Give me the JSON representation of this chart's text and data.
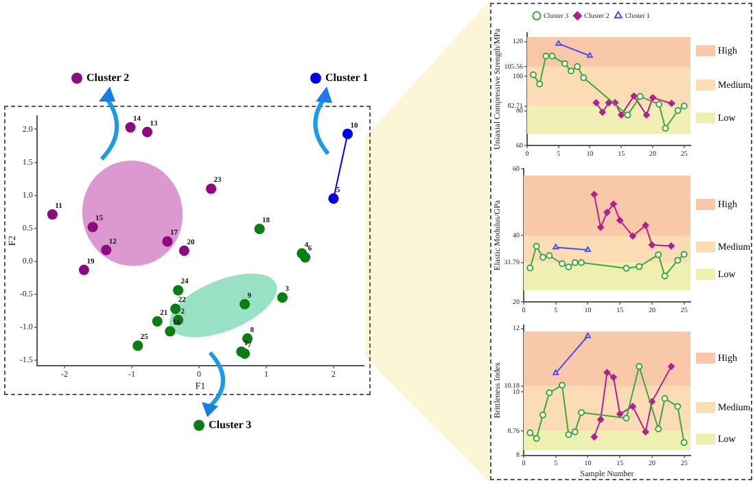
{
  "chart_data": [
    {
      "type": "scatter",
      "legend": "bottom right",
      "xlabel": "F1",
      "ylabel": "F2",
      "xlim": [
        -2.41,
        2.45
      ],
      "ylim": [
        -1.58,
        2.2
      ],
      "xticks": [
        -2,
        -1,
        0,
        1,
        2
      ],
      "yticks": [
        -1.5,
        {
          "value": -1,
          "label": "-1.0"
        },
        -0.5,
        {
          "value": 0,
          "label": "0.0"
        },
        0.5,
        {
          "value": 1,
          "label": "1.0"
        },
        1.5,
        {
          "value": 2,
          "label": "2.0"
        }
      ],
      "series": [
        {
          "name": "Cluster 1",
          "color": "#0000ee",
          "type": "line",
          "marker": "circle",
          "x": [
            2.0,
            2.21
          ],
          "values": [
            0.95,
            1.93
          ]
        },
        {
          "name": "Cluster 2",
          "color": "#8e0a80",
          "marker": "circle",
          "x": [
            -1.02,
            -0.77,
            0.18,
            -2.18,
            -1.58,
            -1.38,
            -0.47,
            -0.22,
            -1.71
          ],
          "values": [
            2.03,
            1.96,
            1.1,
            0.71,
            0.52,
            0.17,
            0.3,
            0.16,
            -0.13
          ]
        },
        {
          "name": "Cluster 3",
          "color": "#0b7d14",
          "marker": "circle",
          "x": [
            0.9,
            1.53,
            1.58,
            1.24,
            0.68,
            -0.31,
            -0.35,
            -0.31,
            -0.62,
            -0.43,
            -0.91,
            0.72,
            0.63,
            0.68
          ],
          "values": [
            0.49,
            0.12,
            0.06,
            -0.55,
            -0.65,
            -0.44,
            -0.72,
            -0.89,
            -0.91,
            -1.06,
            -1.28,
            -1.17,
            -1.37,
            -1.4
          ]
        }
      ],
      "annotations": [
        {
          "text": "5",
          "x": 2.0,
          "y": 0.95
        },
        {
          "text": "10",
          "x": 2.21,
          "y": 1.93
        },
        {
          "text": "14",
          "x": -1.02,
          "y": 2.03
        },
        {
          "text": "13",
          "x": -0.77,
          "y": 1.96
        },
        {
          "text": "23",
          "x": 0.18,
          "y": 1.1
        },
        {
          "text": "11",
          "x": -2.18,
          "y": 0.71
        },
        {
          "text": "15",
          "x": -1.58,
          "y": 0.52
        },
        {
          "text": "12",
          "x": -1.38,
          "y": 0.17
        },
        {
          "text": "17",
          "x": -0.47,
          "y": 0.3
        },
        {
          "text": "20",
          "x": -0.22,
          "y": 0.16
        },
        {
          "text": "19",
          "x": -1.71,
          "y": -0.13
        },
        {
          "text": "18",
          "x": 0.9,
          "y": 0.49
        },
        {
          "text": "4",
          "x": 1.53,
          "y": 0.12
        },
        {
          "text": "6",
          "x": 1.58,
          "y": 0.06
        },
        {
          "text": "3",
          "x": 1.24,
          "y": -0.55
        },
        {
          "text": "9",
          "x": 0.68,
          "y": -0.65
        },
        {
          "text": "24",
          "x": -0.31,
          "y": -0.44
        },
        {
          "text": "22",
          "x": -0.35,
          "y": -0.72
        },
        {
          "text": "2",
          "x": -0.31,
          "y": -0.89
        },
        {
          "text": "21",
          "x": -0.62,
          "y": -0.91
        },
        {
          "text": "16",
          "x": -0.43,
          "y": -1.06
        },
        {
          "text": "25",
          "x": -0.91,
          "y": -1.28
        },
        {
          "text": "8",
          "x": 0.72,
          "y": -1.17
        },
        {
          "text": "1",
          "x": 0.63,
          "y": -1.37
        },
        {
          "text": "7",
          "x": 0.68,
          "y": -1.4
        }
      ]
    },
    {
      "type": "line",
      "ylabel": "Uniaxial Compressive Strength/MPa",
      "xlim": [
        0,
        26
      ],
      "ylim": [
        60,
        125
      ],
      "xticks": [
        0,
        5,
        10,
        15,
        20,
        25
      ],
      "yticks": [
        60,
        80,
        82.71,
        100,
        105.56,
        120
      ],
      "legend": "top",
      "bands": [
        {
          "axis": "y",
          "from": 105.56,
          "to": 122.6,
          "label": "High",
          "color": "#f9c8a9"
        },
        {
          "axis": "y",
          "from": 82.71,
          "to": 105.56,
          "label": "Medium",
          "color": "#fbdcb5"
        },
        {
          "axis": "y",
          "from": 66.7,
          "to": 82.71,
          "label": "Low",
          "color": "#f2efb5"
        }
      ],
      "series": [
        {
          "name": "Cluster 3",
          "color": "#3aa83a",
          "marker": "circle",
          "x": [
            1,
            2,
            3,
            4,
            6,
            7,
            8,
            9,
            16,
            18,
            21,
            22,
            24,
            25
          ],
          "values": [
            100.8,
            95.5,
            111.6,
            111.6,
            107.3,
            103,
            105.6,
            99.1,
            77.6,
            88.3,
            83.8,
            69.9,
            80.2,
            82.8
          ]
        },
        {
          "name": "Cluster 2",
          "color": "#b0208f",
          "marker": "diamond",
          "x": [
            11,
            12,
            13,
            14,
            15,
            17,
            19,
            20,
            23
          ],
          "values": [
            84.7,
            79.2,
            84.7,
            84.7,
            77.6,
            88.6,
            77.6,
            87.6,
            84.3
          ]
        },
        {
          "name": "Cluster 1",
          "color": "#4a4af0",
          "marker": "triangle",
          "x": [
            5,
            10
          ],
          "values": [
            118.8,
            111.8
          ]
        }
      ]
    },
    {
      "type": "line",
      "ylabel": "Elastic Modulus/GPa",
      "xlim": [
        0,
        26
      ],
      "ylim": [
        20,
        60
      ],
      "xticks": [
        0,
        5,
        10,
        15,
        20,
        25
      ],
      "yticks": [
        20,
        31.79,
        40,
        60
      ],
      "bands": [
        {
          "axis": "y",
          "from": 40,
          "to": 58,
          "label": "High",
          "color": "#f9c8a9"
        },
        {
          "axis": "y",
          "from": 31.79,
          "to": 40,
          "label": "Medium",
          "color": "#fbdcb5"
        },
        {
          "axis": "y",
          "from": 23.5,
          "to": 31.79,
          "label": "Low",
          "color": "#eef0b0"
        }
      ],
      "series": [
        {
          "color": "#3aa83a",
          "marker": "circle",
          "x": [
            1,
            2,
            3,
            4,
            6,
            7,
            8,
            9,
            16,
            18,
            21,
            22,
            24,
            25
          ],
          "values": [
            30.2,
            36.7,
            33.4,
            33.9,
            31.5,
            30.5,
            31.8,
            31.8,
            30.1,
            30.6,
            34.2,
            27.8,
            32.5,
            34.3
          ]
        },
        {
          "color": "#b0208f",
          "marker": "diamond",
          "x": [
            11,
            12,
            13,
            14,
            15,
            17,
            19,
            20,
            23
          ],
          "values": [
            52.3,
            42.4,
            46.9,
            49.4,
            44.5,
            39.8,
            43,
            37.1,
            36.8
          ]
        },
        {
          "color": "#4a4af0",
          "marker": "triangle",
          "x": [
            5,
            10
          ],
          "values": [
            36.4,
            35.6
          ]
        }
      ]
    },
    {
      "type": "line",
      "xlabel": "Sample Number",
      "ylabel": "Brittleness Index",
      "xlim": [
        0,
        26
      ],
      "ylim": [
        8,
        12.1
      ],
      "xticks": [
        0,
        5,
        10,
        15,
        20,
        25
      ],
      "yticks": [
        8,
        8.76,
        10,
        10.18,
        12
      ],
      "bands": [
        {
          "axis": "y",
          "from": 10.18,
          "to": 11.9,
          "label": "High",
          "color": "#f9c8a9"
        },
        {
          "axis": "y",
          "from": 8.76,
          "to": 10.18,
          "label": "Medium",
          "color": "#fbdcb5"
        },
        {
          "axis": "y",
          "from": 8.16,
          "to": 8.76,
          "label": "Low",
          "color": "#eef0b0"
        }
      ],
      "series": [
        {
          "color": "#3aa83a",
          "marker": "circle",
          "x": [
            1,
            2,
            3,
            4,
            6,
            7,
            8,
            9,
            16,
            18,
            21,
            22,
            24,
            25
          ],
          "values": [
            8.71,
            8.53,
            9.27,
            9.97,
            10.21,
            8.65,
            8.74,
            9.35,
            9.17,
            10.8,
            8.83,
            9.79,
            9.54,
            8.4
          ]
        },
        {
          "color": "#b0208f",
          "marker": "diamond",
          "x": [
            11,
            12,
            13,
            14,
            15,
            17,
            19,
            20,
            23
          ],
          "values": [
            8.58,
            9.13,
            10.61,
            10.46,
            9.3,
            9.54,
            8.74,
            9.69,
            10.8
          ]
        },
        {
          "color": "#4a4af0",
          "marker": "triangle",
          "x": [
            5,
            10
          ],
          "values": [
            10.59,
            11.76
          ]
        }
      ]
    }
  ]
}
